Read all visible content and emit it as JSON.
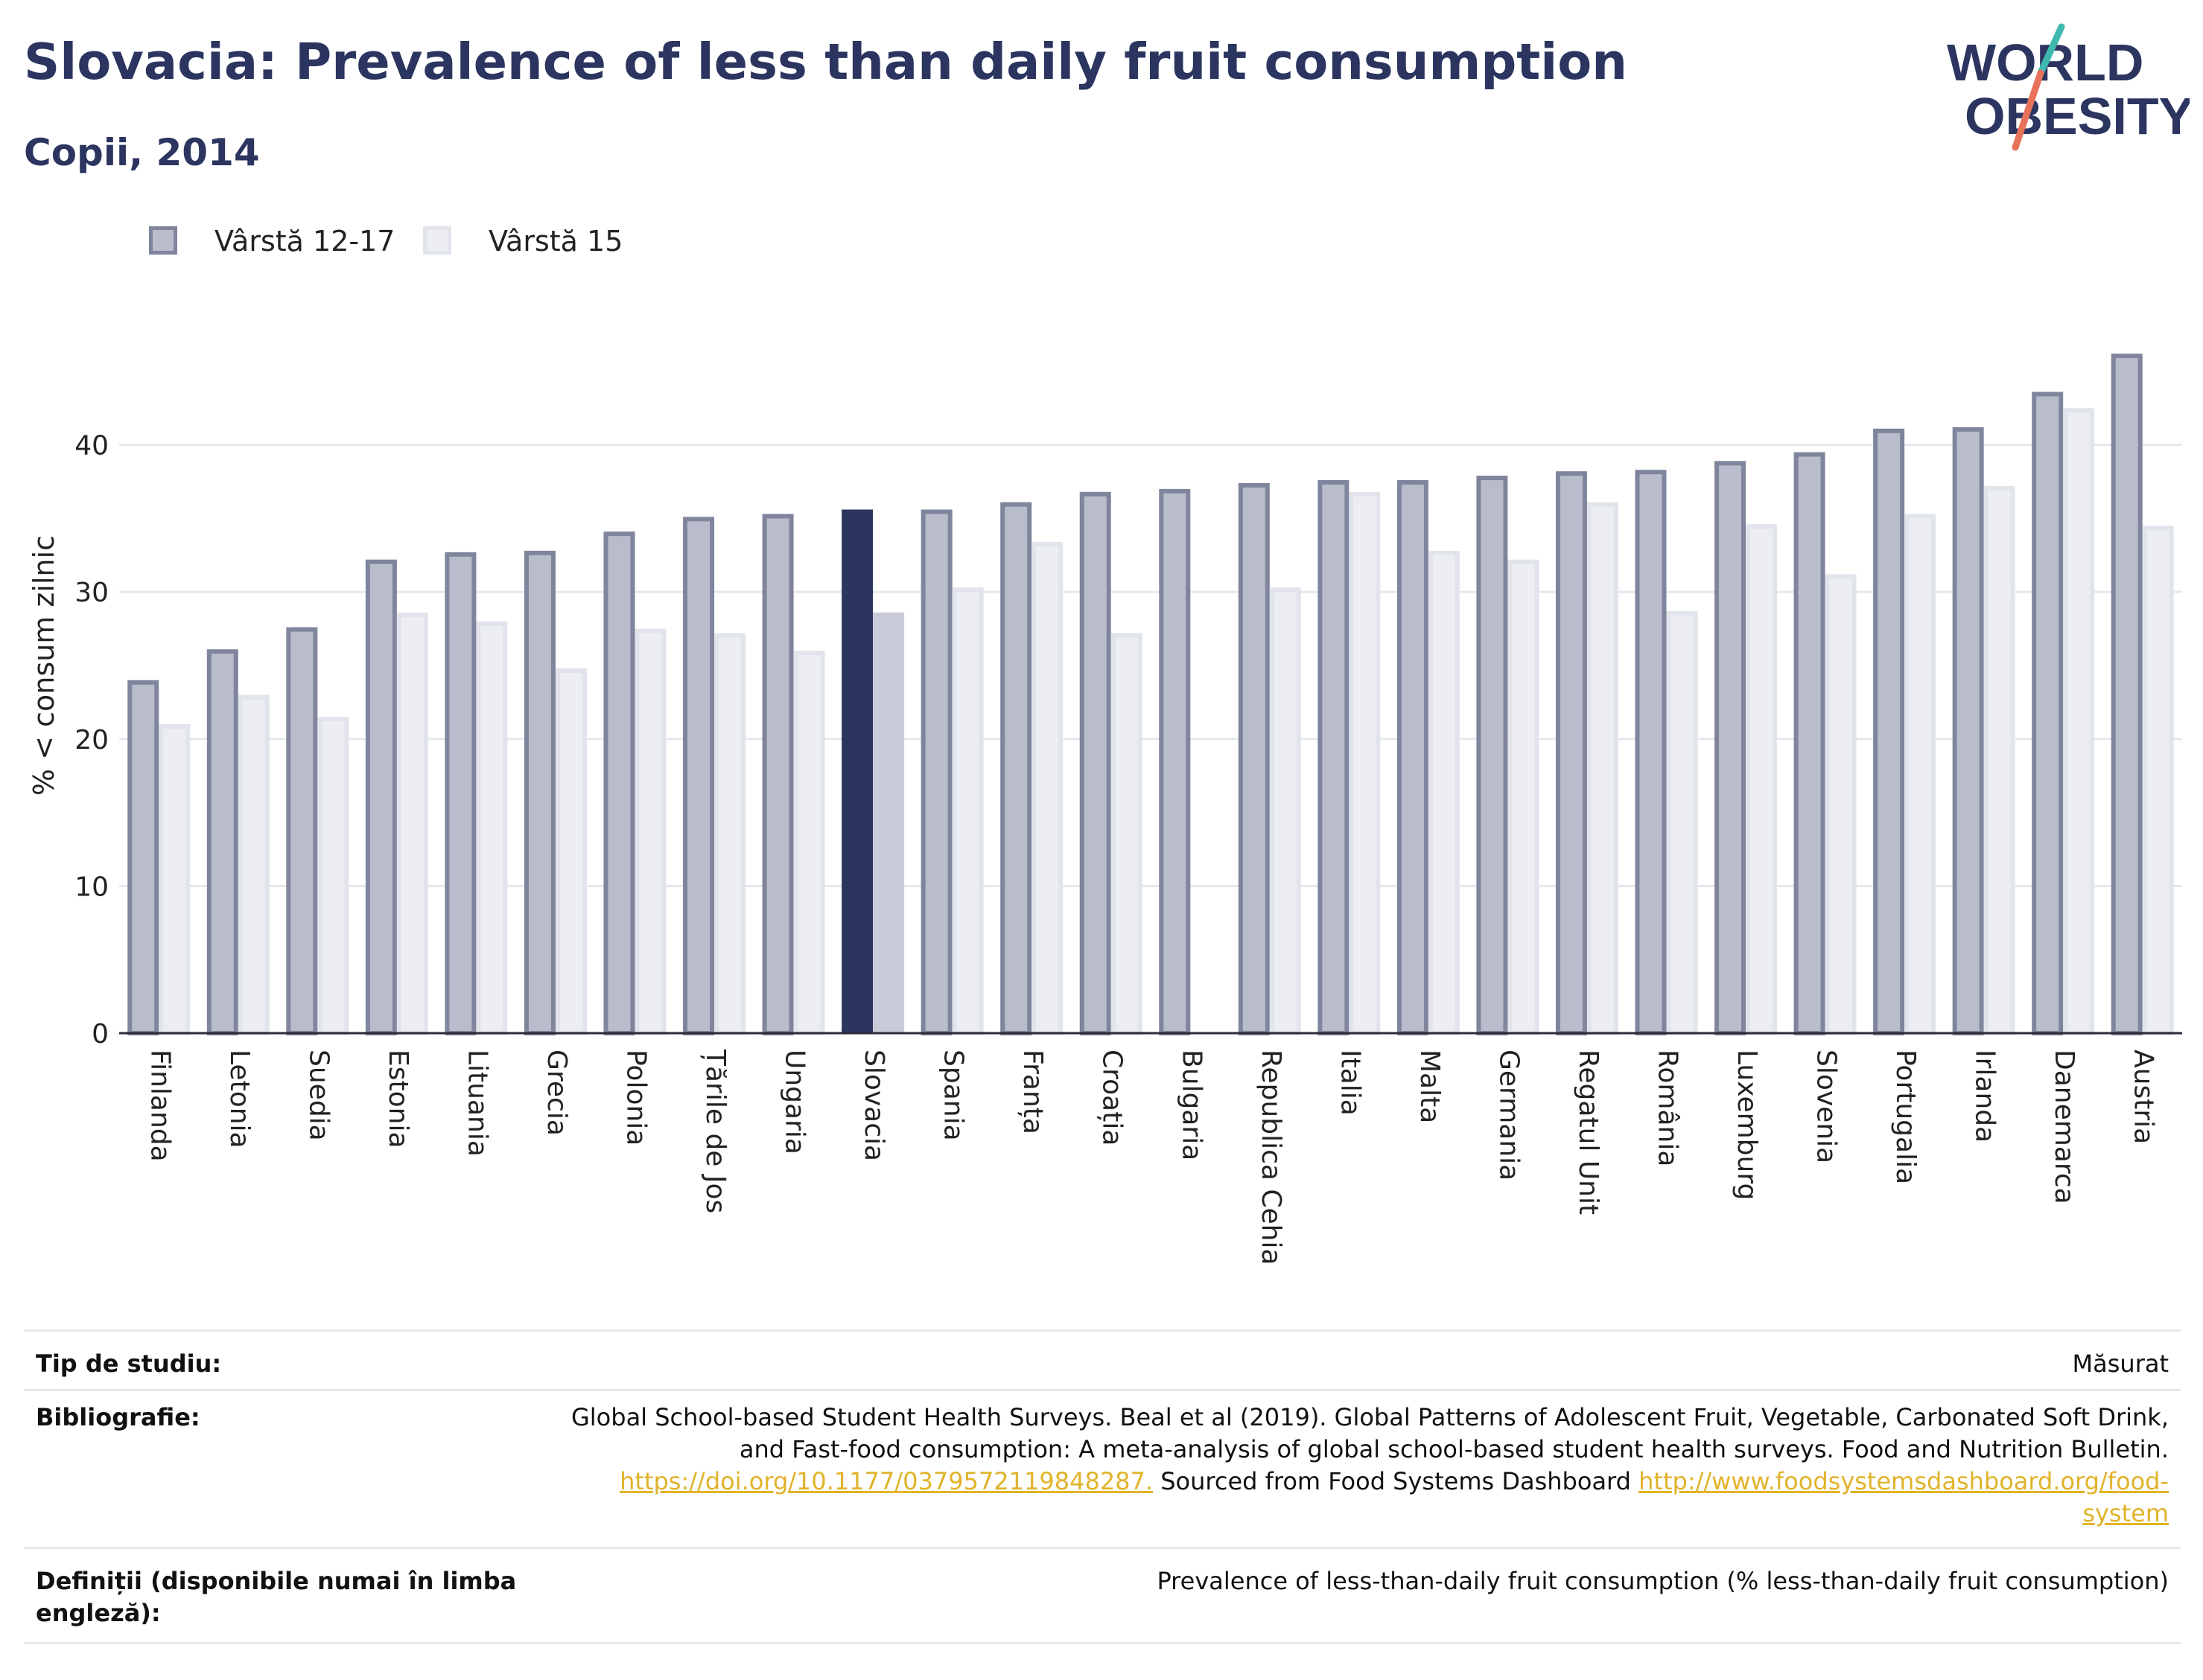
{
  "header": {
    "title": "Slovacia: Prevalence of less than daily fruit consumption",
    "subtitle": "Copii, 2014"
  },
  "logo": {
    "line1": "WORLD",
    "line2": "OBESITY",
    "colors": [
      "#2b3560",
      "#e8715a",
      "#3fb8b0"
    ]
  },
  "legend": [
    {
      "label": "Vârstă 12-17",
      "color": "#b8bccb"
    },
    {
      "label": "Vârstă 15",
      "color": "#eceef3"
    }
  ],
  "chart_data": {
    "type": "bar",
    "ylabel": "% < consum zilnic",
    "xlabel": "",
    "ylim": [
      0,
      50
    ],
    "yticks": [
      0,
      10,
      20,
      30,
      40
    ],
    "grid": true,
    "legend_position": "top-left",
    "highlight": "Slovacia",
    "highlight_colors": [
      "#2b3560",
      "#c9ccd8"
    ],
    "categories": [
      "Finlanda",
      "Letonia",
      "Suedia",
      "Estonia",
      "Lituania",
      "Grecia",
      "Polonia",
      "Țările de Jos",
      "Ungaria",
      "Slovacia",
      "Spania",
      "Franța",
      "Croația",
      "Bulgaria",
      "Republica Cehia",
      "Italia",
      "Malta",
      "Germania",
      "Regatul Unit",
      "România",
      "Luxemburg",
      "Slovenia",
      "Portugalia",
      "Irlanda",
      "Danemarca",
      "Austria"
    ],
    "series": [
      {
        "name": "Vârstă 12-17",
        "values": [
          24.0,
          26.1,
          27.6,
          32.2,
          32.7,
          32.8,
          34.1,
          35.1,
          35.3,
          35.6,
          35.6,
          36.1,
          36.8,
          37.0,
          37.4,
          37.6,
          37.6,
          37.9,
          38.2,
          38.3,
          38.9,
          39.5,
          41.1,
          41.2,
          43.6,
          46.2
        ]
      },
      {
        "name": "Vârstă 15",
        "values": [
          21.0,
          23.0,
          21.5,
          28.6,
          28.0,
          24.8,
          27.5,
          27.2,
          26.0,
          28.6,
          30.3,
          33.4,
          27.2,
          null,
          30.3,
          36.8,
          32.8,
          32.2,
          36.1,
          28.7,
          34.6,
          31.2,
          35.3,
          37.2,
          42.5,
          34.5
        ]
      }
    ]
  },
  "meta": {
    "study_type_key": "Tip de studiu:",
    "study_type_val": "Măsurat",
    "biblio_key": "Bibliografie:",
    "biblio_line1": "Global School-based Student Health Surveys. Beal et al (2019). Global Patterns of Adolescent Fruit, Vegetable, Carbonated Soft Drink,",
    "biblio_line2": "and Fast-food consumption: A meta-analysis of global school-based student health surveys. Food and Nutrition Bulletin.",
    "biblio_link1": "https://doi.org/10.1177/0379572119848287.",
    "biblio_mid": " Sourced from Food Systems Dashboard ",
    "biblio_link2a": "http://www.foodsystemsdashboard.org/food-",
    "biblio_link2b": "system",
    "def_key_line1": "Definiții (disponibile numai în limba",
    "def_key_line2": "engleză):",
    "def_val": "Prevalence of less-than-daily fruit consumption (% less-than-daily fruit consumption)"
  }
}
